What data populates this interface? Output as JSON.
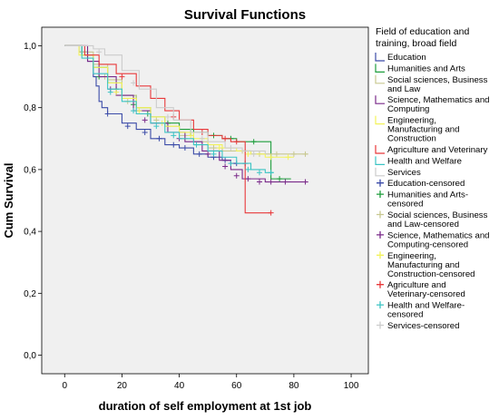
{
  "chart_data": {
    "type": "line",
    "title": "Survival Functions",
    "xlabel": "duration of self employment at 1st job",
    "ylabel": "Cum Survival",
    "xlim": [
      -8,
      106
    ],
    "ylim": [
      -0.06,
      1.06
    ],
    "x_ticks": [
      0,
      20,
      40,
      60,
      80,
      100
    ],
    "x_tick_labels": [
      "0",
      "20",
      "40",
      "60",
      "80",
      "100"
    ],
    "y_ticks": [
      0.0,
      0.2,
      0.4,
      0.6,
      0.8,
      1.0
    ],
    "y_tick_labels": [
      "0,0",
      "0,2",
      "0,4",
      "0,6",
      "0,8",
      "1,0"
    ],
    "plot_background": "#f0f0f0",
    "grid": false,
    "legend_placement": "right",
    "legend_title": "Field of education and training, broad field",
    "legend_title_lines": [
      "Field of education and",
      "training, broad field"
    ],
    "series": [
      {
        "name": "Education",
        "legend_lines": [
          "Education"
        ],
        "color": "#3b4ba8",
        "points": [
          [
            0,
            1.0
          ],
          [
            5,
            0.98
          ],
          [
            8,
            0.95
          ],
          [
            10,
            0.9
          ],
          [
            11,
            0.87
          ],
          [
            12,
            0.82
          ],
          [
            13,
            0.8
          ],
          [
            15,
            0.78
          ],
          [
            20,
            0.75
          ],
          [
            25,
            0.73
          ],
          [
            30,
            0.7
          ],
          [
            35,
            0.68
          ],
          [
            40,
            0.67
          ],
          [
            45,
            0.65
          ],
          [
            50,
            0.64
          ],
          [
            55,
            0.63
          ],
          [
            58,
            0.62
          ],
          [
            60,
            0.62
          ],
          [
            63,
            0.62
          ]
        ],
        "censored": [
          [
            15,
            0.78
          ],
          [
            22,
            0.74
          ],
          [
            28,
            0.72
          ],
          [
            33,
            0.7
          ],
          [
            38,
            0.68
          ],
          [
            42,
            0.67
          ],
          [
            47,
            0.65
          ],
          [
            52,
            0.64
          ],
          [
            56,
            0.63
          ],
          [
            60,
            0.62
          ],
          [
            63,
            0.62
          ]
        ]
      },
      {
        "name": "Humanities and Arts",
        "legend_lines": [
          "Humanities and Arts"
        ],
        "color": "#1e9e3c",
        "points": [
          [
            0,
            1.0
          ],
          [
            6,
            0.97
          ],
          [
            10,
            0.93
          ],
          [
            15,
            0.88
          ],
          [
            20,
            0.84
          ],
          [
            25,
            0.8
          ],
          [
            30,
            0.77
          ],
          [
            35,
            0.75
          ],
          [
            40,
            0.73
          ],
          [
            45,
            0.72
          ],
          [
            50,
            0.71
          ],
          [
            55,
            0.7
          ],
          [
            60,
            0.69
          ],
          [
            65,
            0.69
          ],
          [
            72,
            0.69
          ],
          [
            72,
            0.57
          ],
          [
            79,
            0.57
          ]
        ],
        "censored": [
          [
            12,
            0.9
          ],
          [
            18,
            0.86
          ],
          [
            24,
            0.81
          ],
          [
            29,
            0.78
          ],
          [
            36,
            0.75
          ],
          [
            44,
            0.72
          ],
          [
            52,
            0.71
          ],
          [
            58,
            0.7
          ],
          [
            66,
            0.69
          ],
          [
            75,
            0.57
          ]
        ]
      },
      {
        "name": "Social sciences, Business and Law",
        "legend_lines": [
          "Social sciences, Business",
          "and Law"
        ],
        "color": "#c8c890",
        "points": [
          [
            0,
            1.0
          ],
          [
            5,
            0.98
          ],
          [
            10,
            0.94
          ],
          [
            15,
            0.89
          ],
          [
            20,
            0.84
          ],
          [
            25,
            0.8
          ],
          [
            30,
            0.77
          ],
          [
            35,
            0.74
          ],
          [
            40,
            0.71
          ],
          [
            45,
            0.69
          ],
          [
            50,
            0.67
          ],
          [
            55,
            0.66
          ],
          [
            60,
            0.66
          ],
          [
            65,
            0.65
          ],
          [
            70,
            0.65
          ],
          [
            80,
            0.65
          ],
          [
            85,
            0.65
          ]
        ],
        "censored": [
          [
            14,
            0.9
          ],
          [
            22,
            0.82
          ],
          [
            32,
            0.76
          ],
          [
            42,
            0.7
          ],
          [
            52,
            0.67
          ],
          [
            62,
            0.66
          ],
          [
            68,
            0.65
          ],
          [
            74,
            0.65
          ],
          [
            80,
            0.65
          ],
          [
            84,
            0.65
          ]
        ]
      },
      {
        "name": "Science, Mathematics and Computing",
        "legend_lines": [
          "Science, Mathematics and",
          "Computing"
        ],
        "color": "#7a2a8a",
        "points": [
          [
            0,
            1.0
          ],
          [
            8,
            0.95
          ],
          [
            12,
            0.9
          ],
          [
            18,
            0.84
          ],
          [
            24,
            0.79
          ],
          [
            30,
            0.75
          ],
          [
            36,
            0.72
          ],
          [
            42,
            0.69
          ],
          [
            48,
            0.66
          ],
          [
            54,
            0.63
          ],
          [
            58,
            0.6
          ],
          [
            62,
            0.57
          ],
          [
            70,
            0.56
          ],
          [
            78,
            0.56
          ],
          [
            85,
            0.56
          ]
        ],
        "censored": [
          [
            16,
            0.86
          ],
          [
            28,
            0.76
          ],
          [
            40,
            0.7
          ],
          [
            50,
            0.65
          ],
          [
            56,
            0.61
          ],
          [
            60,
            0.58
          ],
          [
            64,
            0.57
          ],
          [
            68,
            0.56
          ],
          [
            72,
            0.56
          ],
          [
            77,
            0.56
          ],
          [
            84,
            0.56
          ]
        ]
      },
      {
        "name": "Engineering, Manufacturing and Construction",
        "legend_lines": [
          "Engineering,",
          "Manufacturing and",
          "Construction"
        ],
        "color": "#f2f25a",
        "points": [
          [
            0,
            1.0
          ],
          [
            5,
            0.97
          ],
          [
            10,
            0.93
          ],
          [
            15,
            0.88
          ],
          [
            20,
            0.83
          ],
          [
            25,
            0.8
          ],
          [
            30,
            0.77
          ],
          [
            35,
            0.74
          ],
          [
            40,
            0.72
          ],
          [
            45,
            0.7
          ],
          [
            50,
            0.68
          ],
          [
            55,
            0.67
          ],
          [
            60,
            0.66
          ],
          [
            65,
            0.65
          ],
          [
            70,
            0.64
          ],
          [
            80,
            0.64
          ]
        ],
        "censored": [
          [
            18,
            0.85
          ],
          [
            26,
            0.79
          ],
          [
            34,
            0.75
          ],
          [
            44,
            0.71
          ],
          [
            54,
            0.67
          ],
          [
            64,
            0.65
          ],
          [
            72,
            0.64
          ],
          [
            78,
            0.64
          ]
        ]
      },
      {
        "name": "Agriculture and Veterinary",
        "legend_lines": [
          "Agriculture and Veterinary"
        ],
        "color": "#e8383a",
        "points": [
          [
            0,
            1.0
          ],
          [
            7,
            0.97
          ],
          [
            12,
            0.94
          ],
          [
            18,
            0.91
          ],
          [
            25,
            0.87
          ],
          [
            30,
            0.83
          ],
          [
            35,
            0.79
          ],
          [
            40,
            0.76
          ],
          [
            45,
            0.73
          ],
          [
            50,
            0.71
          ],
          [
            55,
            0.7
          ],
          [
            58,
            0.69
          ],
          [
            63,
            0.69
          ],
          [
            63,
            0.46
          ],
          [
            72,
            0.46
          ]
        ],
        "censored": [
          [
            20,
            0.9
          ],
          [
            38,
            0.77
          ],
          [
            48,
            0.72
          ],
          [
            56,
            0.7
          ],
          [
            60,
            0.69
          ],
          [
            72,
            0.46
          ]
        ]
      },
      {
        "name": "Health and Welfare",
        "legend_lines": [
          "Health and Welfare"
        ],
        "color": "#3cc4c4",
        "points": [
          [
            0,
            1.0
          ],
          [
            6,
            0.96
          ],
          [
            10,
            0.91
          ],
          [
            15,
            0.86
          ],
          [
            20,
            0.82
          ],
          [
            25,
            0.78
          ],
          [
            30,
            0.75
          ],
          [
            35,
            0.72
          ],
          [
            40,
            0.7
          ],
          [
            45,
            0.68
          ],
          [
            50,
            0.66
          ],
          [
            55,
            0.64
          ],
          [
            60,
            0.62
          ],
          [
            65,
            0.6
          ],
          [
            70,
            0.59
          ],
          [
            73,
            0.59
          ]
        ],
        "censored": [
          [
            16,
            0.85
          ],
          [
            24,
            0.79
          ],
          [
            32,
            0.74
          ],
          [
            38,
            0.71
          ],
          [
            46,
            0.68
          ],
          [
            52,
            0.65
          ],
          [
            58,
            0.62
          ],
          [
            64,
            0.6
          ],
          [
            68,
            0.59
          ],
          [
            72,
            0.59
          ]
        ]
      },
      {
        "name": "Services",
        "legend_lines": [
          "Services"
        ],
        "color": "#cccccc",
        "points": [
          [
            0,
            1.0
          ],
          [
            10,
            0.99
          ],
          [
            14,
            0.97
          ],
          [
            20,
            0.92
          ],
          [
            26,
            0.86
          ],
          [
            32,
            0.8
          ],
          [
            38,
            0.76
          ],
          [
            44,
            0.72
          ],
          [
            50,
            0.69
          ],
          [
            56,
            0.67
          ],
          [
            62,
            0.66
          ],
          [
            70,
            0.65
          ]
        ],
        "censored": [
          [
            12,
            0.98
          ],
          [
            24,
            0.88
          ],
          [
            36,
            0.77
          ],
          [
            48,
            0.7
          ],
          [
            58,
            0.67
          ],
          [
            66,
            0.65
          ]
        ]
      }
    ],
    "censored_legend": [
      {
        "legend_lines": [
          "Education-censored"
        ],
        "color": "#3b4ba8"
      },
      {
        "legend_lines": [
          "Humanities and Arts-",
          "censored"
        ],
        "color": "#1e9e3c"
      },
      {
        "legend_lines": [
          "Social sciences, Business",
          "and Law-censored"
        ],
        "color": "#c8c890"
      },
      {
        "legend_lines": [
          "Science, Mathematics and",
          "Computing-censored"
        ],
        "color": "#7a2a8a"
      },
      {
        "legend_lines": [
          "Engineering,",
          "Manufacturing and",
          "Construction-censored"
        ],
        "color": "#f2f25a"
      },
      {
        "legend_lines": [
          "Agriculture and",
          "Veterinary-censored"
        ],
        "color": "#e8383a"
      },
      {
        "legend_lines": [
          "Health and Welfare-",
          "censored"
        ],
        "color": "#3cc4c4"
      },
      {
        "legend_lines": [
          "Services-censored"
        ],
        "color": "#cccccc"
      }
    ]
  }
}
